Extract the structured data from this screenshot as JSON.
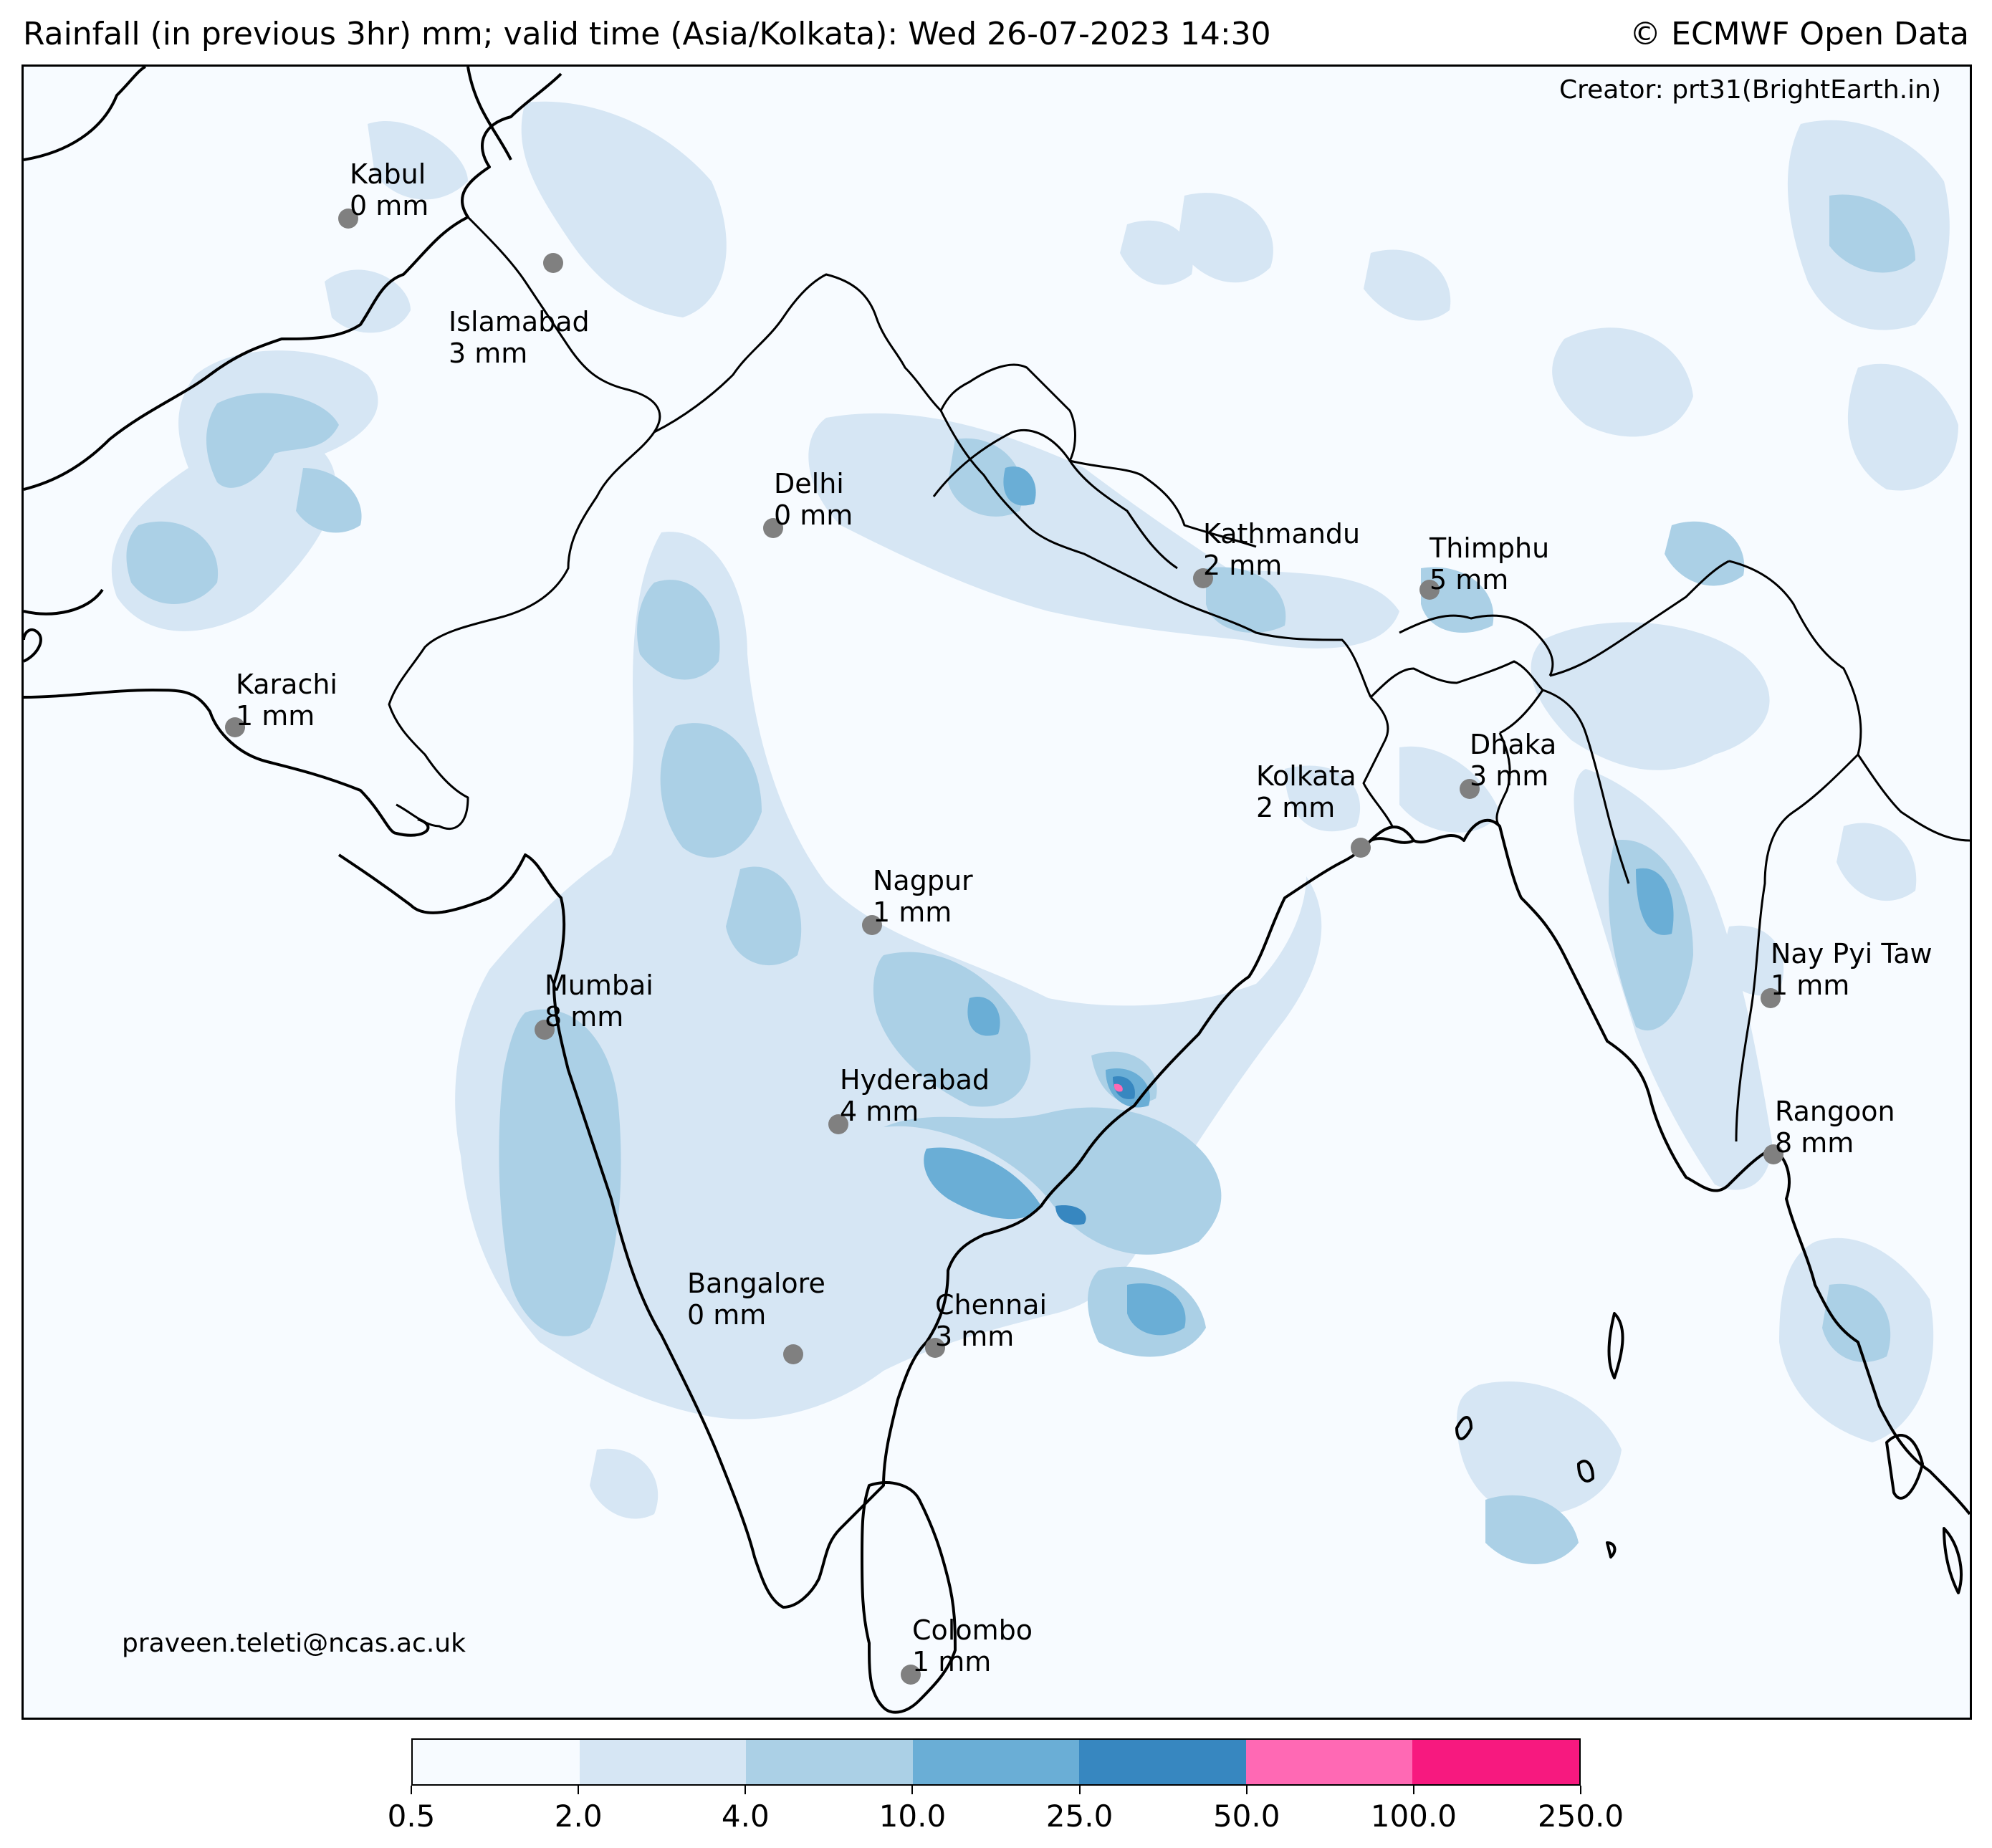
{
  "header": {
    "title": "Rainfall (in previous 3hr) mm; valid time (Asia/Kolkata): Wed 26-07-2023 14:30",
    "copyright": "© ECMWF Open Data"
  },
  "map": {
    "creator": "Creator: prt31(BrightEarth.in)",
    "email": "praveen.teleti@ncas.ac.uk",
    "cities": [
      {
        "name": "Kabul",
        "value": "0 mm"
      },
      {
        "name": "Islamabad",
        "value": "3 mm"
      },
      {
        "name": "Delhi",
        "value": "0 mm"
      },
      {
        "name": "Kathmandu",
        "value": "2 mm"
      },
      {
        "name": "Thimphu",
        "value": "5 mm"
      },
      {
        "name": "Karachi",
        "value": "1 mm"
      },
      {
        "name": "Dhaka",
        "value": "3 mm"
      },
      {
        "name": "Kolkata",
        "value": "2 mm"
      },
      {
        "name": "Nagpur",
        "value": "1 mm"
      },
      {
        "name": "Nay Pyi Taw",
        "value": "1 mm"
      },
      {
        "name": "Mumbai",
        "value": "8 mm"
      },
      {
        "name": "Hyderabad",
        "value": "4 mm"
      },
      {
        "name": "Rangoon",
        "value": "8 mm"
      },
      {
        "name": "Bangalore",
        "value": "0 mm"
      },
      {
        "name": "Chennai",
        "value": "3 mm"
      },
      {
        "name": "Colombo",
        "value": "1 mm"
      }
    ]
  },
  "colorbar": {
    "colors": [
      "#f7fbff",
      "#d6e6f4",
      "#abd0e6",
      "#6aaed6",
      "#3787c0",
      "#ff69b4",
      "#f7197f"
    ],
    "ticks": [
      "0.5",
      "2.0",
      "4.0",
      "10.0",
      "25.0",
      "50.0",
      "100.0",
      "250.0"
    ]
  },
  "palette": {
    "light": "#d6e6f4",
    "medium": "#abd0e6",
    "dark": "#6aaed6",
    "darker": "#3787c0",
    "pink": "#ff69b4",
    "city_dot": "#808080"
  }
}
